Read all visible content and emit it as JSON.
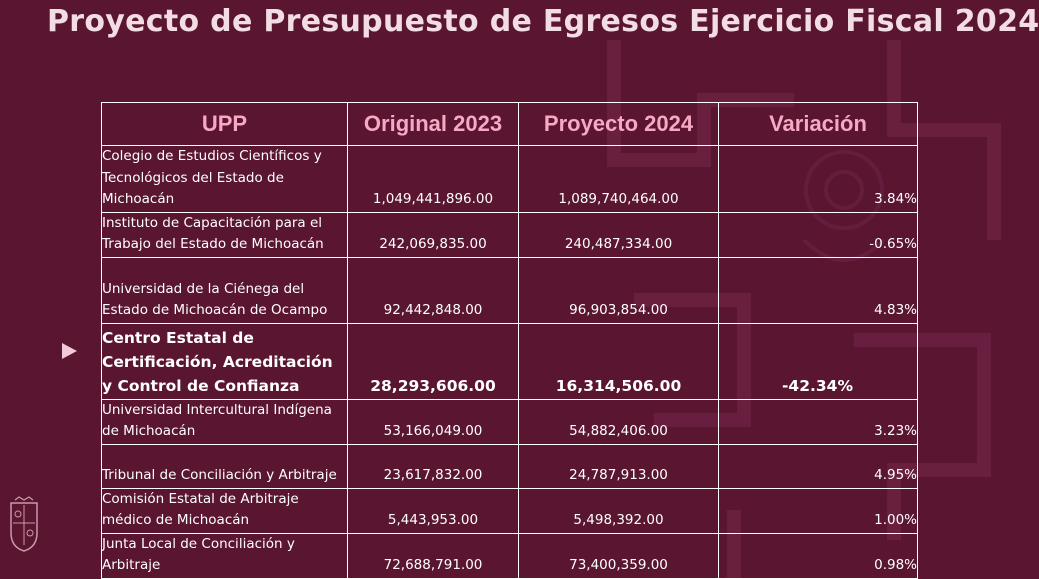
{
  "slide": {
    "title": "Proyecto de Presupuesto de Egresos Ejercicio Fiscal 2024"
  },
  "table": {
    "headers": [
      "UPP",
      "Original 2023",
      "Proyecto 2024",
      "Variación"
    ],
    "rows": [
      {
        "upp": "Colegio de Estudios Científicos y Tecnológicos del Estado de Michoacán",
        "original": "1,049,441,896.00",
        "proyecto": "1,089,740,464.00",
        "variacion": "3.84%"
      },
      {
        "upp": "Instituto de Capacitación para el Trabajo del Estado de Michoacán",
        "original": "242,069,835.00",
        "proyecto": "240,487,334.00",
        "variacion": "-0.65%"
      },
      {
        "upp": "Universidad de la Ciénega del Estado de Michoacán de Ocampo",
        "original": "92,442,848.00",
        "proyecto": "96,903,854.00",
        "variacion": "4.83%"
      },
      {
        "upp": "Centro Estatal de Certificación, Acreditación y Control de Confianza",
        "original": "28,293,606.00",
        "proyecto": "16,314,506.00",
        "variacion": "-42.34%"
      },
      {
        "upp": "Universidad Intercultural Indígena de Michoacán",
        "original": "53,166,049.00",
        "proyecto": "54,882,406.00",
        "variacion": "3.23%"
      },
      {
        "upp": "Tribunal de Conciliación y Arbitraje",
        "original": "23,617,832.00",
        "proyecto": "24,787,913.00",
        "variacion": "4.95%"
      },
      {
        "upp": "Comisión Estatal de Arbitraje médico de Michoacán",
        "original": "5,443,953.00",
        "proyecto": "5,498,392.00",
        "variacion": "1.00%"
      },
      {
        "upp": "Junta Local de Conciliación y Arbitraje",
        "original": "72,688,791.00",
        "proyecto": "73,400,359.00",
        "variacion": "0.98%"
      }
    ]
  },
  "colors": {
    "background": "#5a1530",
    "header_text": "#f6a8c4",
    "body_text": "#ffffff",
    "title_text": "#f3dde4"
  },
  "icons": {
    "pointer": "triangle-right-icon",
    "emblem": "coat-of-arms-icon"
  }
}
